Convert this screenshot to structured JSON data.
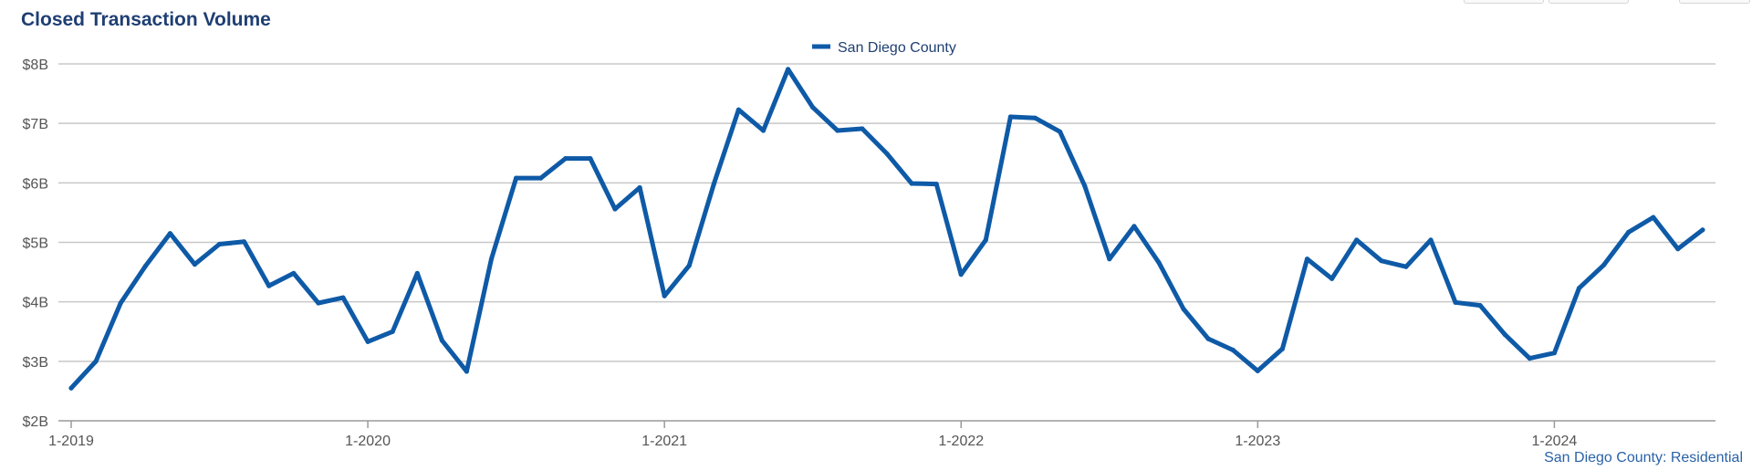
{
  "header": {
    "title": "Closed Transaction Volume"
  },
  "footer": {
    "source": "San Diego County: Residential"
  },
  "colors": {
    "series": "#0e5aa7",
    "grid": "#c8c8c8",
    "title": "#1f3f73"
  },
  "chart_data": {
    "type": "line",
    "title": "Closed Transaction Volume",
    "xlabel": "",
    "ylabel": "",
    "ylim": [
      2,
      8
    ],
    "y_unit": "billions USD",
    "y_ticks": [
      2,
      3,
      4,
      5,
      6,
      7,
      8
    ],
    "y_tick_labels": [
      "$2B",
      "$3B",
      "$4B",
      "$5B",
      "$6B",
      "$7B",
      "$8B"
    ],
    "x_ticks": [
      "2019-01",
      "2020-01",
      "2021-01",
      "2022-01",
      "2023-01",
      "2024-01"
    ],
    "x_tick_labels": [
      "1-2019",
      "1-2020",
      "1-2021",
      "1-2022",
      "1-2023",
      "1-2024"
    ],
    "x_start": "2019-01",
    "x_end": "2024-07",
    "grid": true,
    "legend_position": "top-center",
    "series": [
      {
        "name": "San Diego County",
        "color": "#0e5aa7",
        "values": [
          2.55,
          3.0,
          3.98,
          4.6,
          5.15,
          4.63,
          4.97,
          5.01,
          4.27,
          4.48,
          3.98,
          4.07,
          3.33,
          3.5,
          4.48,
          3.35,
          2.83,
          4.72,
          6.08,
          6.08,
          6.41,
          6.41,
          5.56,
          5.92,
          4.1,
          4.61,
          5.98,
          7.23,
          6.88,
          7.91,
          7.27,
          6.88,
          6.91,
          6.49,
          5.99,
          5.98,
          4.46,
          5.04,
          7.11,
          7.09,
          6.86,
          5.95,
          4.72,
          5.27,
          4.66,
          3.88,
          3.38,
          3.19,
          2.84,
          3.21,
          4.72,
          4.39,
          5.04,
          4.69,
          4.59,
          5.04,
          3.99,
          3.94,
          3.45,
          3.05,
          3.14,
          4.23,
          4.62,
          5.17,
          5.42,
          4.89,
          5.21
        ]
      }
    ]
  }
}
